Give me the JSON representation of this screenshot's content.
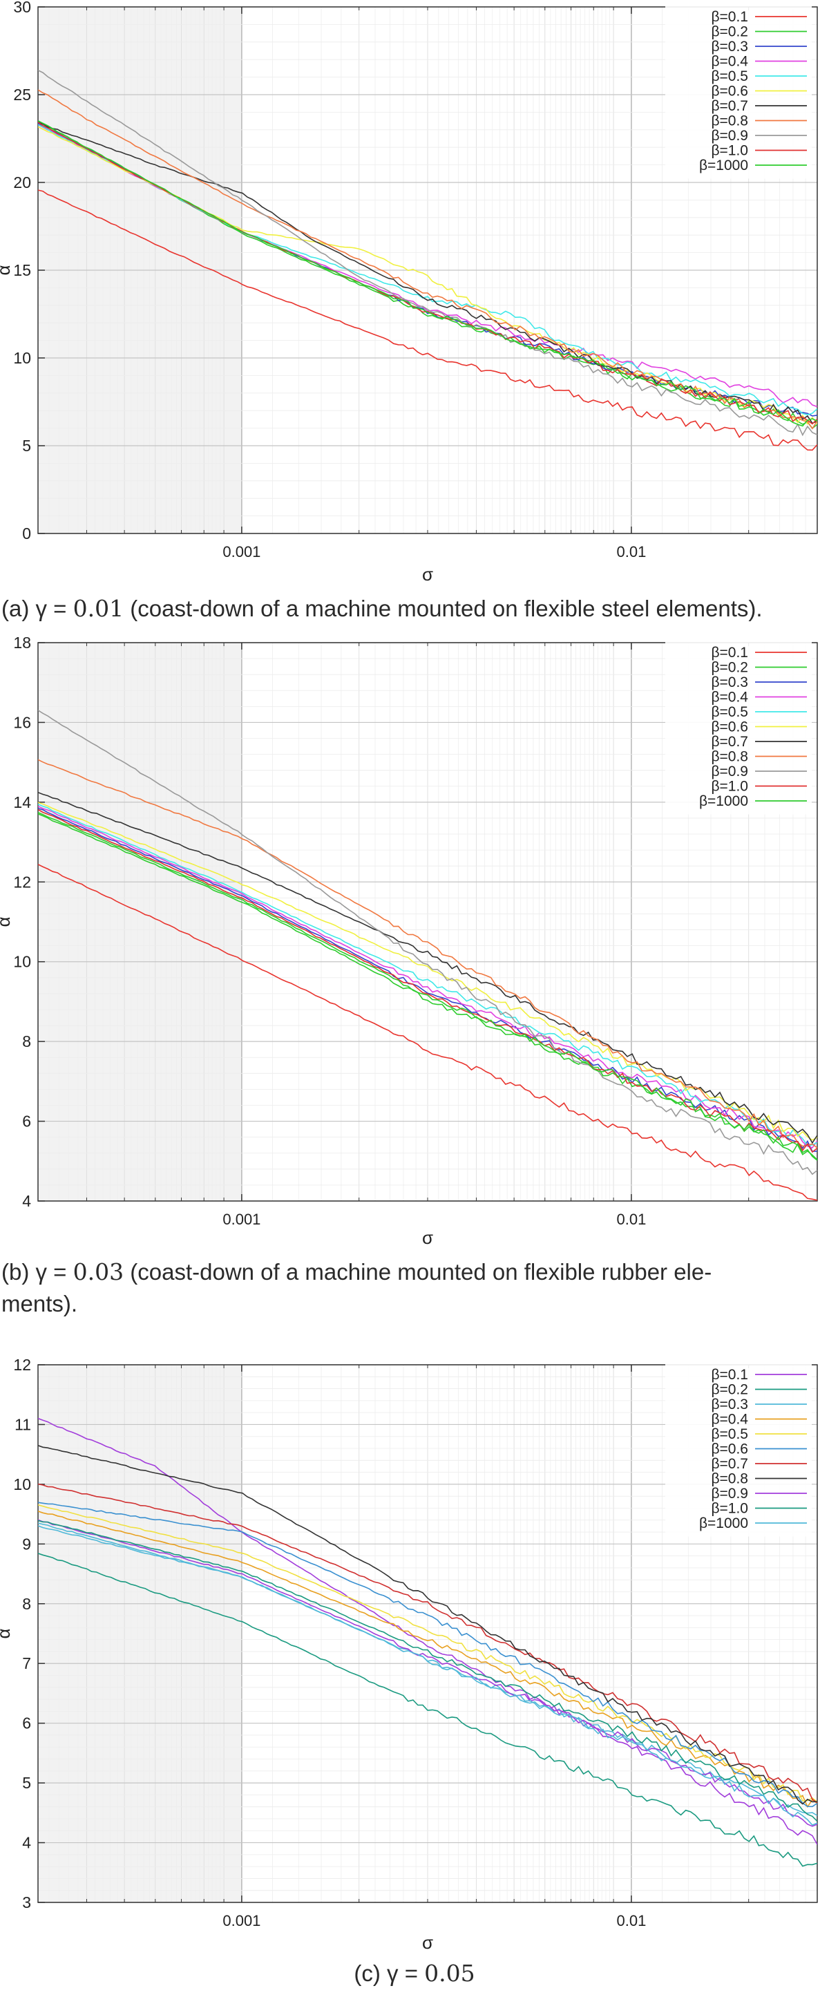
{
  "figure": {
    "panels": [
      {
        "caption_prefix": "(a) γ = ",
        "caption_value": "0.01",
        "caption_suffix": " (coast-down of a machine mounted on flexible steel elements)."
      },
      {
        "caption_prefix": "(b) γ = ",
        "caption_value": "0.03",
        "caption_suffix": " (coast-down of a machine mounted on flexible rubber ele-",
        "caption_line2": "ments)."
      },
      {
        "caption_prefix": "(c) γ = ",
        "caption_value": "0.05",
        "caption_suffix": ""
      }
    ]
  },
  "colors": {
    "palette_ab": [
      "#e8342e",
      "#2ecc2e",
      "#3344cc",
      "#e040e0",
      "#40e8e8",
      "#f0f040",
      "#333333",
      "#f07840",
      "#999999",
      "#e03030",
      "#2ecc2e"
    ],
    "palette_c": [
      "#a23ddb",
      "#1a9a80",
      "#4fb8d8",
      "#e8a020",
      "#f0e040",
      "#3a90d0",
      "#d03030",
      "#333333",
      "#a23ddb",
      "#1a9a80",
      "#4fb8d8"
    ],
    "shade": "#f2f2f2",
    "grid": "#c8c8c8"
  },
  "chart_data": [
    {
      "type": "line",
      "xscale": "log",
      "xlabel": "σ",
      "ylabel": "α",
      "xlim": [
        0.0003,
        0.03
      ],
      "ylim": [
        0,
        30
      ],
      "yticks": [
        0,
        5,
        10,
        15,
        20,
        25,
        30
      ],
      "xticks": [
        0.001,
        0.01
      ],
      "xtick_labels": [
        "0.001",
        "0.01"
      ],
      "shaded_x": [
        0.0003,
        0.001
      ],
      "legend": "top-right",
      "grid": true,
      "series": [
        {
          "name": "β=0.1",
          "points": [
            [
              0.0003,
              19.6
            ],
            [
              0.001,
              14.2
            ],
            [
              0.003,
              10.2
            ],
            [
              0.01,
              7.0
            ],
            [
              0.03,
              4.8
            ]
          ]
        },
        {
          "name": "β=0.2",
          "points": [
            [
              0.0003,
              23.5
            ],
            [
              0.001,
              17.1
            ],
            [
              0.003,
              12.5
            ],
            [
              0.01,
              8.9
            ],
            [
              0.03,
              6.2
            ]
          ]
        },
        {
          "name": "β=0.3",
          "points": [
            [
              0.0003,
              23.4
            ],
            [
              0.001,
              17.2
            ],
            [
              0.003,
              12.6
            ],
            [
              0.01,
              9.1
            ],
            [
              0.03,
              6.6
            ]
          ]
        },
        {
          "name": "β=0.4",
          "points": [
            [
              0.0003,
              23.3
            ],
            [
              0.001,
              17.2
            ],
            [
              0.003,
              12.8
            ],
            [
              0.006,
              10.9
            ],
            [
              0.01,
              9.7
            ],
            [
              0.03,
              7.3
            ]
          ]
        },
        {
          "name": "β=0.5",
          "points": [
            [
              0.0003,
              23.3
            ],
            [
              0.001,
              17.2
            ],
            [
              0.003,
              13.4
            ],
            [
              0.005,
              12.5
            ],
            [
              0.007,
              10.6
            ],
            [
              0.01,
              9.5
            ],
            [
              0.03,
              6.8
            ]
          ]
        },
        {
          "name": "β=0.6",
          "points": [
            [
              0.0003,
              23.2
            ],
            [
              0.001,
              17.3
            ],
            [
              0.002,
              16.2
            ],
            [
              0.003,
              14.6
            ],
            [
              0.005,
              11.8
            ],
            [
              0.01,
              9.2
            ],
            [
              0.03,
              6.3
            ]
          ]
        },
        {
          "name": "β=0.7",
          "points": [
            [
              0.0003,
              23.4
            ],
            [
              0.0006,
              21.0
            ],
            [
              0.001,
              19.4
            ],
            [
              0.0015,
              16.8
            ],
            [
              0.003,
              13.4
            ],
            [
              0.01,
              9.1
            ],
            [
              0.03,
              6.5
            ]
          ]
        },
        {
          "name": "β=0.8",
          "points": [
            [
              0.0003,
              25.3
            ],
            [
              0.0004,
              23.6
            ],
            [
              0.001,
              18.8
            ],
            [
              0.002,
              15.6
            ],
            [
              0.003,
              13.7
            ],
            [
              0.01,
              9.2
            ],
            [
              0.03,
              6.1
            ]
          ]
        },
        {
          "name": "β=0.9",
          "points": [
            [
              0.0003,
              26.4
            ],
            [
              0.001,
              19.0
            ],
            [
              0.002,
              14.6
            ],
            [
              0.003,
              12.8
            ],
            [
              0.01,
              8.5
            ],
            [
              0.03,
              5.7
            ]
          ]
        },
        {
          "name": "β=1.0",
          "points": [
            [
              0.0003,
              23.4
            ],
            [
              0.001,
              17.2
            ],
            [
              0.003,
              12.6
            ],
            [
              0.01,
              9.0
            ],
            [
              0.03,
              6.3
            ]
          ]
        },
        {
          "name": "β=1000",
          "points": [
            [
              0.0003,
              23.5
            ],
            [
              0.001,
              17.2
            ],
            [
              0.003,
              12.6
            ],
            [
              0.01,
              9.0
            ],
            [
              0.03,
              6.2
            ]
          ]
        }
      ]
    },
    {
      "type": "line",
      "xscale": "log",
      "xlabel": "σ",
      "ylabel": "α",
      "xlim": [
        0.0003,
        0.03
      ],
      "ylim": [
        4,
        18
      ],
      "yticks": [
        4,
        6,
        8,
        10,
        12,
        14,
        16,
        18
      ],
      "xticks": [
        0.001,
        0.01
      ],
      "xtick_labels": [
        "0.001",
        "0.01"
      ],
      "shaded_x": [
        0.0003,
        0.001
      ],
      "legend": "top-right",
      "grid": true,
      "series": [
        {
          "name": "β=0.1",
          "points": [
            [
              0.0003,
              12.45
            ],
            [
              0.001,
              10.05
            ],
            [
              0.003,
              7.8
            ],
            [
              0.01,
              5.7
            ],
            [
              0.03,
              4.1
            ]
          ]
        },
        {
          "name": "β=0.2",
          "points": [
            [
              0.0003,
              13.7
            ],
            [
              0.001,
              11.5
            ],
            [
              0.003,
              9.05
            ],
            [
              0.01,
              6.95
            ],
            [
              0.03,
              5.1
            ]
          ]
        },
        {
          "name": "β=0.3",
          "points": [
            [
              0.0003,
              13.85
            ],
            [
              0.001,
              11.65
            ],
            [
              0.003,
              9.25
            ],
            [
              0.01,
              7.05
            ],
            [
              0.03,
              5.3
            ]
          ]
        },
        {
          "name": "β=0.4",
          "points": [
            [
              0.0003,
              13.9
            ],
            [
              0.001,
              11.7
            ],
            [
              0.003,
              9.35
            ],
            [
              0.01,
              7.15
            ],
            [
              0.03,
              5.4
            ]
          ]
        },
        {
          "name": "β=0.5",
          "points": [
            [
              0.0003,
              13.95
            ],
            [
              0.001,
              11.75
            ],
            [
              0.003,
              9.5
            ],
            [
              0.01,
              7.3
            ],
            [
              0.03,
              5.4
            ]
          ]
        },
        {
          "name": "β=0.6",
          "points": [
            [
              0.0003,
              14.0
            ],
            [
              0.001,
              11.95
            ],
            [
              0.003,
              9.85
            ],
            [
              0.01,
              7.45
            ],
            [
              0.03,
              5.5
            ]
          ]
        },
        {
          "name": "β=0.7",
          "points": [
            [
              0.0003,
              14.25
            ],
            [
              0.001,
              12.35
            ],
            [
              0.003,
              10.2
            ],
            [
              0.01,
              7.6
            ],
            [
              0.03,
              5.5
            ]
          ]
        },
        {
          "name": "β=0.8",
          "points": [
            [
              0.0003,
              15.05
            ],
            [
              0.001,
              13.1
            ],
            [
              0.003,
              10.45
            ],
            [
              0.01,
              7.5
            ],
            [
              0.03,
              5.3
            ]
          ]
        },
        {
          "name": "β=0.9",
          "points": [
            [
              0.0003,
              16.3
            ],
            [
              0.001,
              13.2
            ],
            [
              0.003,
              9.9
            ],
            [
              0.01,
              6.7
            ],
            [
              0.03,
              4.75
            ]
          ]
        },
        {
          "name": "β=1.0",
          "points": [
            [
              0.0003,
              13.8
            ],
            [
              0.001,
              11.6
            ],
            [
              0.003,
              9.2
            ],
            [
              0.01,
              7.0
            ],
            [
              0.03,
              5.2
            ]
          ]
        },
        {
          "name": "β=1000",
          "points": [
            [
              0.0003,
              13.75
            ],
            [
              0.001,
              11.55
            ],
            [
              0.003,
              9.15
            ],
            [
              0.01,
              7.0
            ],
            [
              0.03,
              5.1
            ]
          ]
        }
      ]
    },
    {
      "type": "line",
      "xscale": "log",
      "xlabel": "σ",
      "ylabel": "α",
      "xlim": [
        0.0003,
        0.03
      ],
      "ylim": [
        3,
        12
      ],
      "yticks": [
        3,
        4,
        5,
        6,
        7,
        8,
        9,
        10,
        11,
        12
      ],
      "xticks": [
        0.001,
        0.01
      ],
      "xtick_labels": [
        "0.001",
        "0.01"
      ],
      "shaded_x": [
        0.0003,
        0.001
      ],
      "legend": "top-right",
      "grid": true,
      "series": [
        {
          "name": "β=0.1",
          "points": [
            [
              0.0003,
              11.1
            ],
            [
              0.0006,
              10.3
            ],
            [
              0.001,
              9.2
            ],
            [
              0.003,
              7.3
            ],
            [
              0.01,
              5.6
            ],
            [
              0.03,
              4.05
            ]
          ]
        },
        {
          "name": "β=0.2",
          "points": [
            [
              0.0003,
              8.85
            ],
            [
              0.001,
              7.7
            ],
            [
              0.003,
              6.25
            ],
            [
              0.01,
              4.85
            ],
            [
              0.03,
              3.6
            ]
          ]
        },
        {
          "name": "β=0.3",
          "points": [
            [
              0.0003,
              9.35
            ],
            [
              0.001,
              8.45
            ],
            [
              0.003,
              7.05
            ],
            [
              0.01,
              5.7
            ],
            [
              0.03,
              4.4
            ]
          ]
        },
        {
          "name": "β=0.4",
          "points": [
            [
              0.0003,
              9.55
            ],
            [
              0.001,
              8.7
            ],
            [
              0.003,
              7.4
            ],
            [
              0.01,
              5.95
            ],
            [
              0.03,
              4.6
            ]
          ]
        },
        {
          "name": "β=0.5",
          "points": [
            [
              0.0003,
              9.65
            ],
            [
              0.001,
              8.85
            ],
            [
              0.003,
              7.55
            ],
            [
              0.01,
              6.05
            ],
            [
              0.03,
              4.65
            ]
          ]
        },
        {
          "name": "β=0.6",
          "points": [
            [
              0.0003,
              9.7
            ],
            [
              0.001,
              9.2
            ],
            [
              0.003,
              7.8
            ],
            [
              0.01,
              6.1
            ],
            [
              0.03,
              4.6
            ]
          ]
        },
        {
          "name": "β=0.7",
          "points": [
            [
              0.0003,
              10.0
            ],
            [
              0.001,
              9.3
            ],
            [
              0.003,
              8.0
            ],
            [
              0.01,
              6.3
            ],
            [
              0.03,
              4.75
            ]
          ]
        },
        {
          "name": "β=0.8",
          "points": [
            [
              0.0003,
              10.65
            ],
            [
              0.001,
              9.85
            ],
            [
              0.003,
              8.1
            ],
            [
              0.01,
              6.2
            ],
            [
              0.03,
              4.6
            ]
          ]
        },
        {
          "name": "β=0.9",
          "points": [
            [
              0.0003,
              9.4
            ],
            [
              0.001,
              8.5
            ],
            [
              0.003,
              7.1
            ],
            [
              0.01,
              5.7
            ],
            [
              0.03,
              4.3
            ]
          ]
        },
        {
          "name": "β=1.0",
          "points": [
            [
              0.0003,
              9.4
            ],
            [
              0.001,
              8.55
            ],
            [
              0.003,
              7.2
            ],
            [
              0.01,
              5.8
            ],
            [
              0.03,
              4.45
            ]
          ]
        },
        {
          "name": "β=1000",
          "points": [
            [
              0.0003,
              9.3
            ],
            [
              0.001,
              8.45
            ],
            [
              0.003,
              7.05
            ],
            [
              0.01,
              5.65
            ],
            [
              0.03,
              4.35
            ]
          ]
        }
      ]
    }
  ]
}
